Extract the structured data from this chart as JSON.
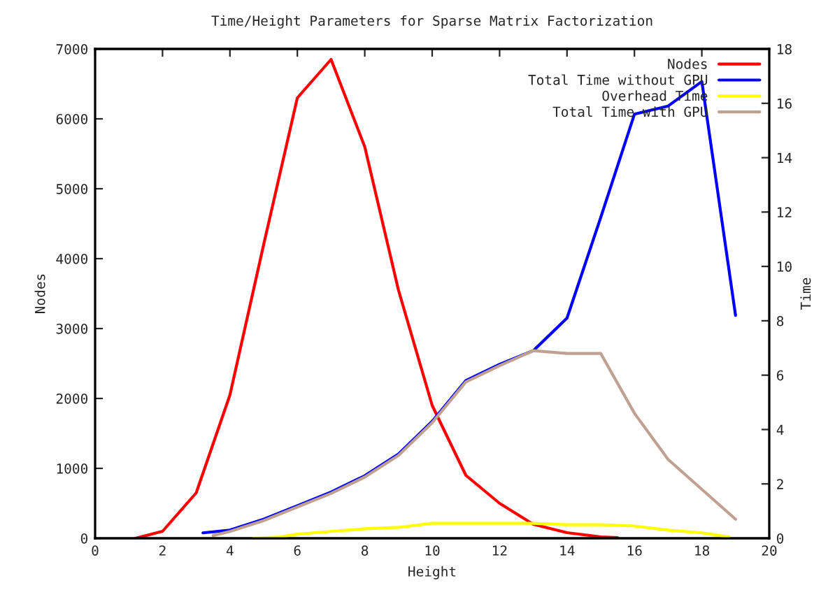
{
  "chart_data": {
    "type": "line",
    "title": "Time/Height Parameters for Sparse Matrix Factorization",
    "xlabel": "Height",
    "ylabel": "Nodes",
    "y2label": "Time",
    "xlim": [
      0,
      20
    ],
    "xticks": [
      0,
      2,
      4,
      6,
      8,
      10,
      12,
      14,
      16,
      18,
      20
    ],
    "ylim": [
      0,
      7000
    ],
    "yticks": [
      0,
      1000,
      2000,
      3000,
      4000,
      5000,
      6000,
      7000
    ],
    "y2lim": [
      0,
      18
    ],
    "y2ticks": [
      0,
      2,
      4,
      6,
      8,
      10,
      12,
      14,
      16,
      18
    ],
    "legend": "top right",
    "grid": false,
    "marker": "none",
    "line_style": "solid",
    "series": [
      {
        "name": "Nodes",
        "color": "#ff0000",
        "axis": "y",
        "x": [
          1.2,
          2,
          3,
          4,
          5,
          6,
          7,
          8,
          9,
          10,
          11,
          12,
          13,
          14,
          15,
          15.5
        ],
        "values": [
          0,
          100,
          650,
          2050,
          4200,
          6300,
          6850,
          5600,
          3550,
          1900,
          900,
          500,
          200,
          80,
          20,
          10
        ]
      },
      {
        "name": "Total Time without GPU",
        "color": "#0000ff",
        "axis": "y2",
        "x": [
          3.2,
          4,
          5,
          6,
          7,
          8,
          9,
          10,
          11,
          12,
          13,
          14,
          15,
          16,
          17,
          18,
          19
        ],
        "values": [
          0.2,
          0.3,
          0.7,
          1.2,
          1.7,
          2.3,
          3.1,
          4.3,
          5.8,
          6.4,
          6.9,
          8.1,
          11.8,
          15.6,
          15.9,
          16.8,
          8.2
        ]
      },
      {
        "name": "Overhead Time",
        "color": "#ffff00",
        "axis": "y2",
        "x": [
          4.7,
          5.5,
          6,
          7,
          8,
          9,
          10,
          11,
          12,
          13,
          14,
          15,
          16,
          17,
          18,
          18.8
        ],
        "values": [
          0,
          0.05,
          0.15,
          0.25,
          0.35,
          0.4,
          0.55,
          0.55,
          0.55,
          0.55,
          0.5,
          0.5,
          0.45,
          0.3,
          0.2,
          0.05
        ]
      },
      {
        "name": "Total Time with GPU",
        "color": "#c0a090",
        "axis": "y2",
        "x": [
          3.5,
          4,
          5,
          6,
          7,
          8,
          9,
          10,
          11,
          12,
          13,
          14,
          15,
          16,
          17,
          18,
          19
        ],
        "values": [
          0.1,
          0.25,
          0.65,
          1.15,
          1.65,
          2.25,
          3.05,
          4.25,
          5.75,
          6.35,
          6.9,
          6.8,
          6.8,
          4.6,
          2.9,
          1.8,
          0.7
        ]
      }
    ]
  }
}
